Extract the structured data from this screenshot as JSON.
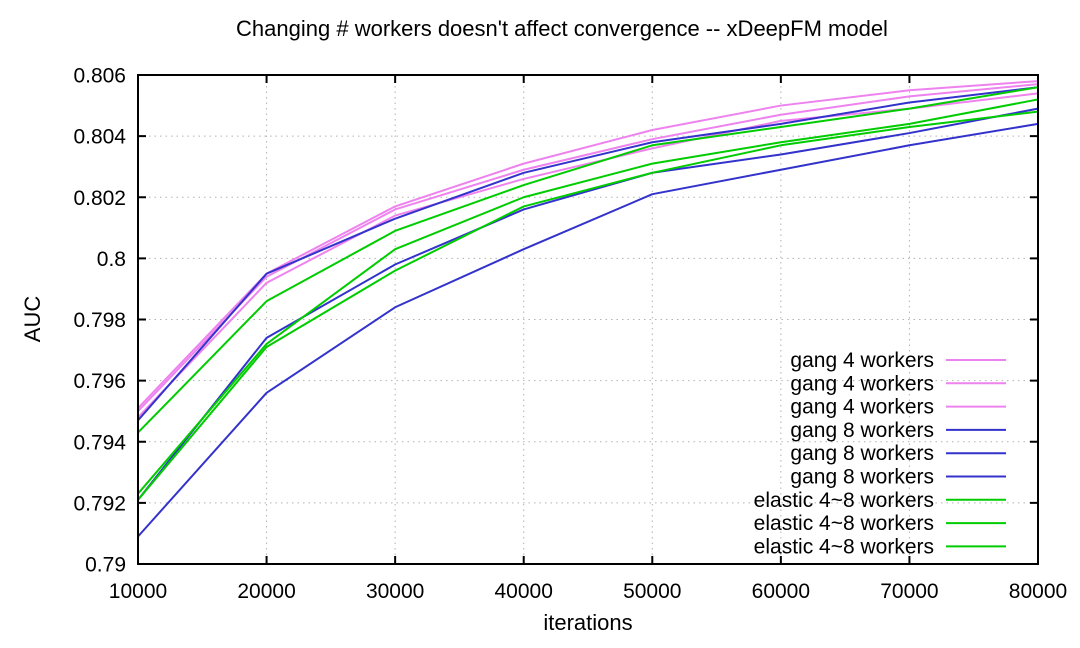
{
  "chart_data": {
    "type": "line",
    "title": "Changing # workers doesn't affect convergence -- xDeepFM model",
    "xlabel": "iterations",
    "ylabel": "AUC",
    "xlim": [
      10000,
      80000
    ],
    "ylim": [
      0.79,
      0.806
    ],
    "grid": true,
    "legend_position": "inside-right",
    "xticks": [
      10000,
      20000,
      30000,
      40000,
      50000,
      60000,
      70000,
      80000
    ],
    "xtick_labels": [
      "10000",
      "20000",
      "30000",
      "40000",
      "50000",
      "60000",
      "70000",
      "80000"
    ],
    "yticks": [
      0.79,
      0.792,
      0.794,
      0.796,
      0.798,
      0.8,
      0.802,
      0.804,
      0.806
    ],
    "ytick_labels": [
      "0.79",
      "0.792",
      "0.794",
      "0.796",
      "0.798",
      "0.8",
      "0.802",
      "0.804",
      "0.806"
    ],
    "x": [
      10000,
      20000,
      30000,
      40000,
      50000,
      60000,
      70000,
      80000
    ],
    "series": [
      {
        "name": "gang 4 workers",
        "color": "#ee82ee",
        "values": [
          0.7951,
          0.7995,
          0.8017,
          0.8031,
          0.8042,
          0.805,
          0.8055,
          0.8058
        ]
      },
      {
        "name": "gang 4 workers",
        "color": "#ee82ee",
        "values": [
          0.795,
          0.7994,
          0.8016,
          0.8029,
          0.8039,
          0.8047,
          0.8053,
          0.8057
        ]
      },
      {
        "name": "gang 4 workers",
        "color": "#ee82ee",
        "values": [
          0.7948,
          0.7992,
          0.8014,
          0.8026,
          0.8036,
          0.8045,
          0.8049,
          0.8054
        ]
      },
      {
        "name": "gang 8 workers",
        "color": "#3333cc",
        "values": [
          0.7947,
          0.7995,
          0.8013,
          0.8028,
          0.8038,
          0.8044,
          0.8051,
          0.8056
        ]
      },
      {
        "name": "gang 8 workers",
        "color": "#3333cc",
        "values": [
          0.7921,
          0.7974,
          0.7998,
          0.8016,
          0.8028,
          0.8034,
          0.8041,
          0.8049
        ]
      },
      {
        "name": "gang 8 workers",
        "color": "#3333cc",
        "values": [
          0.7909,
          0.7956,
          0.7984,
          0.8003,
          0.8021,
          0.8029,
          0.8037,
          0.8044
        ]
      },
      {
        "name": "elastic 4~8 workers",
        "color": "#00cc00",
        "values": [
          0.7943,
          0.7986,
          0.8009,
          0.8024,
          0.8037,
          0.8043,
          0.8049,
          0.8056
        ]
      },
      {
        "name": "elastic 4~8 workers",
        "color": "#00cc00",
        "values": [
          0.7923,
          0.7972,
          0.8003,
          0.802,
          0.8031,
          0.8038,
          0.8044,
          0.8052
        ]
      },
      {
        "name": "elastic 4~8 workers",
        "color": "#00cc00",
        "values": [
          0.7921,
          0.7971,
          0.7996,
          0.8017,
          0.8028,
          0.8037,
          0.8043,
          0.8048
        ]
      }
    ],
    "colors": {
      "gang_4_workers": "#ee82ee",
      "gang_8_workers": "#3333cc",
      "elastic_4_8_workers": "#00cc00",
      "grid": "#b3b3b3",
      "frame": "#000000"
    }
  }
}
